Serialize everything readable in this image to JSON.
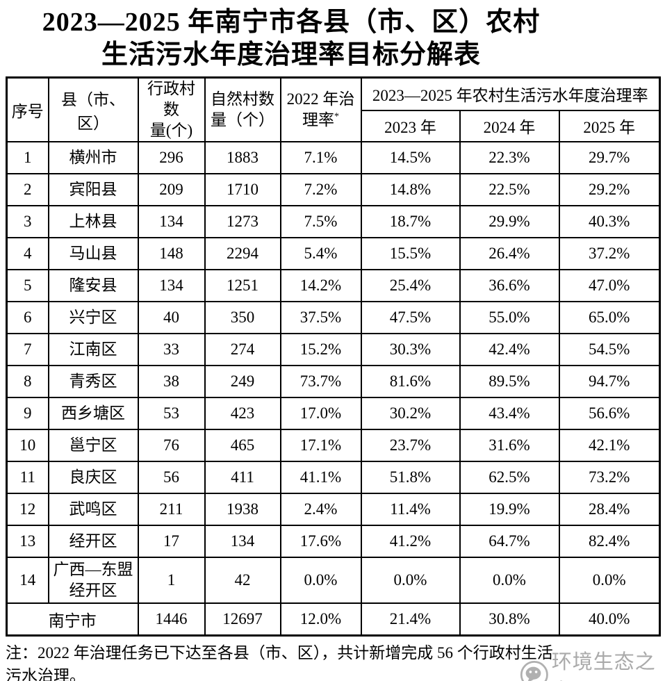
{
  "title": {
    "line1": "2023—2025 年南宁市各县（市、区）农村",
    "line2": "生活污水年度治理率目标分解表"
  },
  "table": {
    "headers": {
      "index": "序号",
      "county": "县（市、区）",
      "admin_villages": "行政村数\n量(个)",
      "natural_villages": "自然村数\n量（个）",
      "rate2022": "2022 年治\n理率",
      "rate2022_note_mark": "*",
      "period": "2023—2025 年农村生活污水年度治理率",
      "y2023": "2023 年",
      "y2024": "2024 年",
      "y2025": "2025 年"
    },
    "rows": [
      {
        "no": "1",
        "county": "横州市",
        "admin": "296",
        "natural": "1883",
        "rate2022": "7.1%",
        "y2023": "14.5%",
        "y2024": "22.3%",
        "y2025": "29.7%"
      },
      {
        "no": "2",
        "county": "宾阳县",
        "admin": "209",
        "natural": "1710",
        "rate2022": "7.2%",
        "y2023": "14.8%",
        "y2024": "22.5%",
        "y2025": "29.2%"
      },
      {
        "no": "3",
        "county": "上林县",
        "admin": "134",
        "natural": "1273",
        "rate2022": "7.5%",
        "y2023": "18.7%",
        "y2024": "29.9%",
        "y2025": "40.3%"
      },
      {
        "no": "4",
        "county": "马山县",
        "admin": "148",
        "natural": "2294",
        "rate2022": "5.4%",
        "y2023": "15.5%",
        "y2024": "26.4%",
        "y2025": "37.2%"
      },
      {
        "no": "5",
        "county": "隆安县",
        "admin": "134",
        "natural": "1251",
        "rate2022": "14.2%",
        "y2023": "25.4%",
        "y2024": "36.6%",
        "y2025": "47.0%"
      },
      {
        "no": "6",
        "county": "兴宁区",
        "admin": "40",
        "natural": "350",
        "rate2022": "37.5%",
        "y2023": "47.5%",
        "y2024": "55.0%",
        "y2025": "65.0%"
      },
      {
        "no": "7",
        "county": "江南区",
        "admin": "33",
        "natural": "274",
        "rate2022": "15.2%",
        "y2023": "30.3%",
        "y2024": "42.4%",
        "y2025": "54.5%"
      },
      {
        "no": "8",
        "county": "青秀区",
        "admin": "38",
        "natural": "249",
        "rate2022": "73.7%",
        "y2023": "81.6%",
        "y2024": "89.5%",
        "y2025": "94.7%"
      },
      {
        "no": "9",
        "county": "西乡塘区",
        "admin": "53",
        "natural": "423",
        "rate2022": "17.0%",
        "y2023": "30.2%",
        "y2024": "43.4%",
        "y2025": "56.6%"
      },
      {
        "no": "10",
        "county": "邕宁区",
        "admin": "76",
        "natural": "465",
        "rate2022": "17.1%",
        "y2023": "23.7%",
        "y2024": "31.6%",
        "y2025": "42.1%"
      },
      {
        "no": "11",
        "county": "良庆区",
        "admin": "56",
        "natural": "411",
        "rate2022": "41.1%",
        "y2023": "51.8%",
        "y2024": "62.5%",
        "y2025": "73.2%"
      },
      {
        "no": "12",
        "county": "武鸣区",
        "admin": "211",
        "natural": "1938",
        "rate2022": "2.4%",
        "y2023": "11.4%",
        "y2024": "19.9%",
        "y2025": "28.4%"
      },
      {
        "no": "13",
        "county": "经开区",
        "admin": "17",
        "natural": "134",
        "rate2022": "17.6%",
        "y2023": "41.2%",
        "y2024": "64.7%",
        "y2025": "82.4%"
      },
      {
        "no": "14",
        "county": "广西—东盟\n经开区",
        "admin": "1",
        "natural": "42",
        "rate2022": "0.0%",
        "y2023": "0.0%",
        "y2024": "0.0%",
        "y2025": "0.0%"
      }
    ],
    "total_row": {
      "county": "南宁市",
      "admin": "1446",
      "natural": "12697",
      "rate2022": "12.0%",
      "y2023": "21.4%",
      "y2024": "30.8%",
      "y2025": "40.0%"
    }
  },
  "note": {
    "line1": "注：2022 年治理任务已下达至各县（市、区），共计新增完成 56 个行政村生活",
    "line2": "污水治理。"
  },
  "watermark": {
    "text": "环境生态之家",
    "color": "#a3a3a3"
  }
}
